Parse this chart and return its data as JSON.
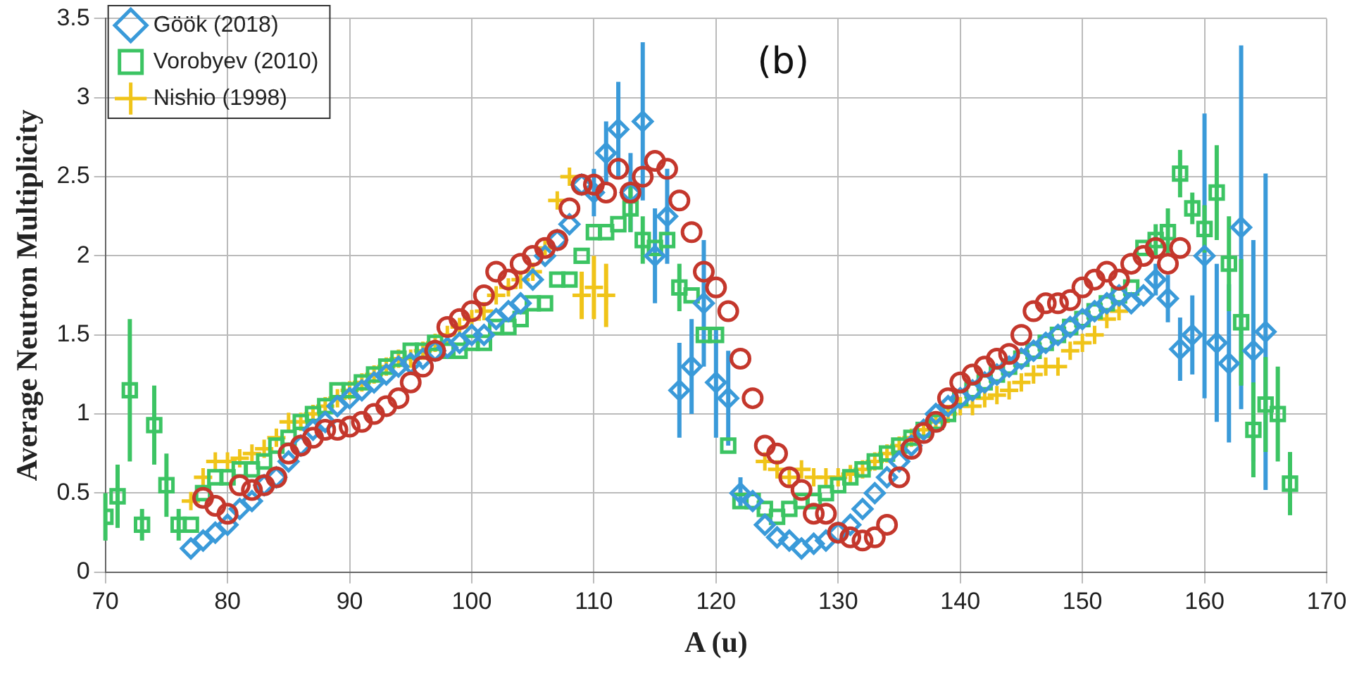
{
  "chart_data": {
    "type": "scatter",
    "xlabel": "A (u)",
    "ylabel": "Average Neutron Multiplicity",
    "xlim": [
      70,
      170
    ],
    "xticks": [
      70,
      80,
      90,
      100,
      110,
      120,
      130,
      140,
      150,
      160,
      170
    ],
    "ylim": [
      0,
      3.5
    ],
    "yticks": [
      0,
      0.5,
      1,
      1.5,
      2,
      2.5,
      3,
      3.5
    ],
    "grid": true,
    "legend": "top left",
    "annotations": [
      "(b)"
    ],
    "series": [
      {
        "color": "#c4372c",
        "marker": "circle",
        "x": [
          78,
          79,
          80,
          81,
          82,
          83,
          84,
          85,
          86,
          87,
          88,
          89,
          90,
          91,
          92,
          93,
          94,
          95,
          96,
          97,
          98,
          99,
          100,
          101,
          102,
          103,
          104,
          105,
          106,
          107,
          108,
          109,
          110,
          111,
          112,
          113,
          114,
          115,
          116,
          117,
          118,
          119,
          120,
          121,
          122,
          123,
          124,
          125,
          126,
          127,
          128,
          129,
          130,
          131,
          132,
          133,
          134,
          135,
          136,
          137,
          138,
          139,
          140,
          141,
          142,
          143,
          144,
          145,
          146,
          147,
          148,
          149,
          150,
          151,
          152,
          153,
          154,
          155,
          156,
          157,
          158
        ],
        "values": [
          0.47,
          0.42,
          0.37,
          0.55,
          0.52,
          0.55,
          0.6,
          0.75,
          0.8,
          0.85,
          0.9,
          0.9,
          0.92,
          0.95,
          1.0,
          1.05,
          1.1,
          1.2,
          1.3,
          1.4,
          1.55,
          1.6,
          1.65,
          1.75,
          1.9,
          1.85,
          1.95,
          2.0,
          2.05,
          2.1,
          2.3,
          2.45,
          2.45,
          2.4,
          2.55,
          2.4,
          2.5,
          2.6,
          2.55,
          2.35,
          2.15,
          1.9,
          1.8,
          1.65,
          1.35,
          1.1,
          0.8,
          0.75,
          0.6,
          0.52,
          0.37,
          0.37,
          0.25,
          0.22,
          0.2,
          0.22,
          0.3,
          0.6,
          0.78,
          0.88,
          0.95,
          1.1,
          1.2,
          1.25,
          1.3,
          1.35,
          1.38,
          1.5,
          1.65,
          1.7,
          1.7,
          1.72,
          1.8,
          1.85,
          1.9,
          1.85,
          1.95,
          2.0,
          2.05,
          1.95,
          2.05
        ]
      },
      {
        "name": "Göök (2018)",
        "color": "#3a9ad9",
        "marker": "diamond",
        "x": [
          77,
          78,
          79,
          80,
          81,
          82,
          83,
          84,
          85,
          86,
          87,
          88,
          89,
          90,
          91,
          92,
          93,
          94,
          95,
          96,
          97,
          98,
          99,
          100,
          101,
          102,
          103,
          104,
          105,
          106,
          107,
          108,
          109,
          110,
          111,
          112,
          113,
          114,
          115,
          116,
          117,
          118,
          119,
          120,
          121,
          122,
          123,
          124,
          125,
          126,
          127,
          128,
          129,
          130,
          131,
          132,
          133,
          134,
          135,
          136,
          137,
          138,
          139,
          140,
          141,
          142,
          143,
          144,
          145,
          146,
          147,
          148,
          149,
          150,
          151,
          152,
          153,
          154,
          155,
          156,
          157,
          158,
          159,
          160,
          161,
          162,
          163,
          164,
          165
        ],
        "values": [
          0.15,
          0.2,
          0.25,
          0.3,
          0.4,
          0.45,
          0.55,
          0.6,
          0.7,
          0.8,
          0.9,
          0.95,
          1.05,
          1.1,
          1.15,
          1.2,
          1.25,
          1.3,
          1.32,
          1.35,
          1.4,
          1.42,
          1.45,
          1.5,
          1.5,
          1.6,
          1.65,
          1.7,
          1.85,
          2.0,
          2.1,
          2.2,
          2.45,
          2.4,
          2.65,
          2.8,
          2.4,
          2.85,
          2.0,
          2.25,
          1.15,
          1.3,
          1.7,
          1.2,
          1.1,
          0.5,
          0.45,
          0.3,
          0.22,
          0.2,
          0.15,
          0.18,
          0.2,
          0.25,
          0.3,
          0.4,
          0.5,
          0.6,
          0.7,
          0.8,
          0.9,
          1.0,
          1.05,
          1.1,
          1.15,
          1.2,
          1.25,
          1.3,
          1.35,
          1.4,
          1.45,
          1.5,
          1.55,
          1.6,
          1.65,
          1.7,
          1.75,
          1.7,
          1.75,
          1.85,
          1.73,
          1.41,
          1.5,
          2.0,
          1.45,
          1.32,
          2.18,
          1.4,
          1.52
        ],
        "errors": [
          null,
          null,
          null,
          null,
          null,
          null,
          null,
          null,
          null,
          null,
          null,
          null,
          null,
          null,
          null,
          null,
          null,
          null,
          null,
          null,
          null,
          null,
          null,
          null,
          null,
          null,
          null,
          null,
          null,
          null,
          null,
          null,
          null,
          0.15,
          0.2,
          0.3,
          0.25,
          0.5,
          0.3,
          0.3,
          0.3,
          0.3,
          0.4,
          0.35,
          0.3,
          0.1,
          null,
          null,
          null,
          null,
          null,
          null,
          null,
          null,
          null,
          null,
          null,
          null,
          null,
          null,
          null,
          null,
          null,
          null,
          null,
          null,
          null,
          null,
          null,
          null,
          null,
          null,
          null,
          null,
          null,
          null,
          null,
          null,
          null,
          0.1,
          0.15,
          0.2,
          0.25,
          0.9,
          0.5,
          0.5,
          1.15,
          0.7,
          1.0
        ]
      },
      {
        "name": "Vorobyev (2010)",
        "color": "#3cc463",
        "marker": "square",
        "x": [
          70,
          71,
          72,
          73,
          74,
          75,
          76,
          77,
          78,
          79,
          80,
          81,
          82,
          83,
          84,
          85,
          86,
          87,
          88,
          89,
          90,
          91,
          92,
          93,
          94,
          95,
          96,
          97,
          98,
          99,
          100,
          101,
          102,
          103,
          104,
          105,
          106,
          107,
          108,
          109,
          110,
          111,
          112,
          113,
          114,
          115,
          116,
          117,
          118,
          119,
          120,
          121,
          122,
          123,
          124,
          125,
          126,
          127,
          128,
          129,
          130,
          131,
          132,
          133,
          134,
          135,
          136,
          137,
          138,
          139,
          140,
          141,
          142,
          143,
          144,
          145,
          146,
          147,
          148,
          149,
          150,
          151,
          152,
          153,
          154,
          155,
          156,
          157,
          158,
          159,
          160,
          161,
          162,
          163,
          164,
          165,
          166,
          167
        ],
        "values": [
          0.35,
          0.48,
          1.15,
          0.3,
          0.93,
          0.55,
          0.3,
          0.3,
          0.5,
          0.6,
          0.6,
          0.65,
          0.65,
          0.7,
          0.8,
          0.85,
          0.95,
          1.0,
          1.05,
          1.15,
          1.15,
          1.2,
          1.25,
          1.3,
          1.35,
          1.4,
          1.4,
          1.45,
          1.4,
          1.4,
          1.45,
          1.45,
          1.55,
          1.55,
          1.6,
          1.7,
          1.7,
          1.85,
          1.85,
          2.0,
          2.15,
          2.15,
          2.2,
          2.3,
          2.1,
          2.05,
          2.1,
          1.8,
          1.75,
          1.5,
          1.5,
          0.8,
          0.45,
          0.45,
          0.4,
          0.35,
          0.4,
          0.45,
          0.45,
          0.5,
          0.55,
          0.6,
          0.65,
          0.7,
          0.75,
          0.8,
          0.85,
          0.9,
          0.95,
          1.0,
          1.1,
          1.15,
          1.2,
          1.25,
          1.3,
          1.35,
          1.4,
          1.45,
          1.5,
          1.55,
          1.6,
          1.65,
          1.7,
          1.75,
          1.8,
          2.05,
          2.1,
          2.15,
          2.52,
          2.3,
          2.17,
          2.4,
          1.95,
          1.58,
          0.9,
          1.06,
          1.0,
          0.56
        ],
        "errors": [
          0.15,
          0.2,
          0.45,
          0.1,
          0.25,
          0.2,
          0.1,
          null,
          null,
          null,
          null,
          null,
          null,
          null,
          null,
          null,
          null,
          null,
          null,
          null,
          null,
          null,
          null,
          null,
          null,
          null,
          null,
          null,
          null,
          null,
          null,
          null,
          null,
          null,
          null,
          null,
          null,
          null,
          null,
          null,
          null,
          null,
          null,
          0.15,
          0.15,
          null,
          null,
          0.15,
          null,
          null,
          null,
          null,
          null,
          null,
          null,
          null,
          null,
          null,
          null,
          null,
          null,
          null,
          null,
          null,
          null,
          null,
          null,
          null,
          null,
          null,
          null,
          null,
          null,
          null,
          null,
          null,
          null,
          null,
          null,
          null,
          null,
          null,
          null,
          null,
          null,
          null,
          0.1,
          0.15,
          0.15,
          0.1,
          0.15,
          0.3,
          0.3,
          0.4,
          0.3,
          0.3,
          0.3,
          0.2
        ]
      },
      {
        "name": "Nishio (1998)",
        "color": "#f0c419",
        "marker": "cross",
        "x": [
          77,
          78,
          79,
          80,
          81,
          82,
          83,
          84,
          85,
          86,
          87,
          88,
          89,
          90,
          91,
          92,
          93,
          94,
          95,
          96,
          97,
          98,
          99,
          100,
          101,
          102,
          103,
          104,
          105,
          106,
          107,
          108,
          109,
          110,
          111,
          124,
          125,
          126,
          127,
          128,
          129,
          130,
          131,
          132,
          133,
          134,
          135,
          136,
          137,
          138,
          139,
          140,
          141,
          142,
          143,
          144,
          145,
          146,
          147,
          148,
          149,
          150,
          151,
          152,
          153
        ],
        "values": [
          0.45,
          0.6,
          0.7,
          0.7,
          0.72,
          0.75,
          0.78,
          0.85,
          0.95,
          0.95,
          1.0,
          1.05,
          1.1,
          1.15,
          1.2,
          1.25,
          1.3,
          1.35,
          1.35,
          1.4,
          1.45,
          1.5,
          1.55,
          1.6,
          1.65,
          1.75,
          1.8,
          1.85,
          1.9,
          2.05,
          2.35,
          2.5,
          1.75,
          1.8,
          1.75,
          0.7,
          0.65,
          0.6,
          0.65,
          0.6,
          0.6,
          0.6,
          0.62,
          0.65,
          0.7,
          0.75,
          0.8,
          0.85,
          0.9,
          0.95,
          1.0,
          1.05,
          1.05,
          1.1,
          1.12,
          1.15,
          1.2,
          1.25,
          1.3,
          1.3,
          1.4,
          1.45,
          1.5,
          1.6,
          1.65
        ],
        "errors": [
          null,
          null,
          null,
          null,
          null,
          null,
          null,
          null,
          null,
          null,
          null,
          null,
          null,
          null,
          null,
          null,
          null,
          null,
          null,
          null,
          null,
          null,
          null,
          null,
          null,
          null,
          null,
          null,
          null,
          null,
          null,
          null,
          0.15,
          0.2,
          0.2,
          null,
          null,
          null,
          null,
          null,
          null,
          null,
          null,
          null,
          null,
          null,
          null,
          null,
          null,
          null,
          null,
          null,
          null,
          null,
          null,
          null,
          null,
          null,
          null,
          null,
          null,
          null,
          null,
          null,
          null
        ]
      }
    ]
  }
}
